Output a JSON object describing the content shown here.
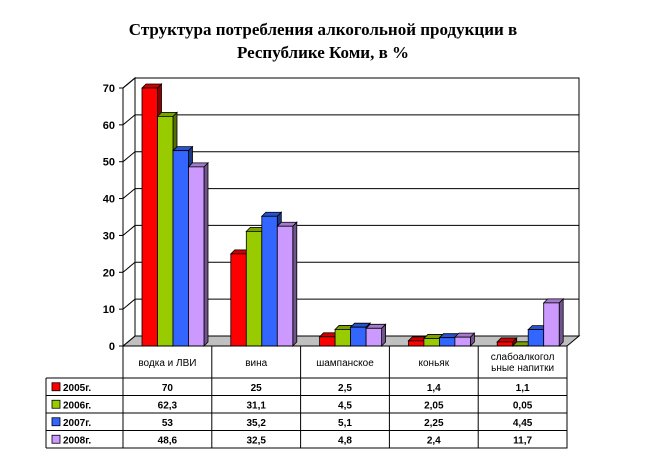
{
  "chart_data": {
    "type": "bar",
    "title_lines": [
      "Структура потребления алкогольной продукции в",
      "Республике Коми, в %"
    ],
    "categories": [
      [
        "водка и ЛВИ"
      ],
      [
        "вина"
      ],
      [
        "шампанское"
      ],
      [
        "коньяк"
      ],
      [
        "слабоалкогол",
        "ьные напитки"
      ]
    ],
    "series": [
      {
        "name": "2005г.",
        "color": "#ff0000",
        "values": [
          70,
          25,
          2.5,
          1.4,
          1.1
        ],
        "labels": [
          "70",
          "25",
          "2,5",
          "1,4",
          "1,1"
        ]
      },
      {
        "name": "2006г.",
        "color": "#99cc00",
        "values": [
          62.3,
          31.1,
          4.5,
          2.05,
          0.05
        ],
        "labels": [
          "62,3",
          "31,1",
          "4,5",
          "2,05",
          "0,05"
        ]
      },
      {
        "name": "2007г.",
        "color": "#3366ff",
        "values": [
          53,
          35.2,
          5.1,
          2.25,
          4.45
        ],
        "labels": [
          "53",
          "35,2",
          "5,1",
          "2,25",
          "4,45"
        ]
      },
      {
        "name": "2008г.",
        "color": "#cc99ff",
        "values": [
          48.6,
          32.5,
          4.8,
          2.4,
          11.7
        ],
        "labels": [
          "48,6",
          "32,5",
          "4,8",
          "2,4",
          "11,7"
        ]
      }
    ],
    "ylim": [
      0,
      70
    ],
    "yticks": [
      "0",
      "10",
      "20",
      "30",
      "40",
      "50",
      "60",
      "70"
    ],
    "grid": true,
    "legend": "data-table"
  }
}
